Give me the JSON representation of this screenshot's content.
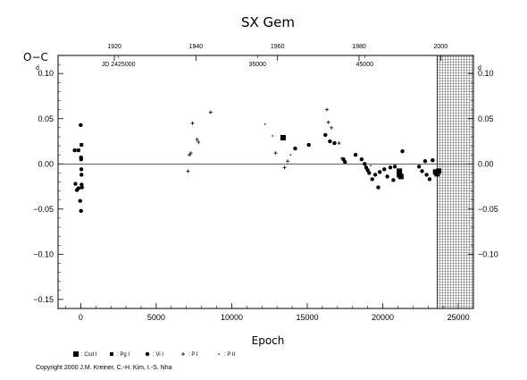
{
  "chart_data": {
    "type": "scatter",
    "title": "SX Gem",
    "xlabel": "Epoch",
    "ylabel": "O−C",
    "y_unit_mark": "d",
    "xlim": [
      -1500,
      26000
    ],
    "ylim": [
      -0.16,
      0.12
    ],
    "x_ticks": [
      {
        "value": 0,
        "label": "0"
      },
      {
        "value": 5000,
        "label": "5000"
      },
      {
        "value": 10000,
        "label": "10000"
      },
      {
        "value": 15000,
        "label": "15000"
      },
      {
        "value": 20000,
        "label": "20000"
      },
      {
        "value": 25000,
        "label": "25000"
      }
    ],
    "y_ticks_left": [
      {
        "value": 0.1,
        "label": "0.10"
      },
      {
        "value": 0.05,
        "label": "0.05"
      },
      {
        "value": 0.0,
        "label": "0.00"
      },
      {
        "value": -0.05,
        "label": "−0.05"
      },
      {
        "value": -0.1,
        "label": "−0.10"
      },
      {
        "value": -0.15,
        "label": "−0.15"
      }
    ],
    "y_ticks_right": [
      {
        "value": 0.1,
        "label": "0.10"
      },
      {
        "value": 0.05,
        "label": "0.05"
      },
      {
        "value": 0.0,
        "label": "0.00"
      },
      {
        "value": -0.05,
        "label": "−0.05"
      },
      {
        "value": -0.1,
        "label": "−0.10"
      }
    ],
    "top_year_ticks": [
      {
        "value": 1920,
        "epoch": 2230,
        "label": "1920"
      },
      {
        "value": 1940,
        "epoch": 7630,
        "label": "1940"
      },
      {
        "value": 1960,
        "epoch": 13030,
        "label": "1960"
      },
      {
        "value": 1980,
        "epoch": 18430,
        "label": "1980"
      },
      {
        "value": 2000,
        "epoch": 23830,
        "label": "2000"
      }
    ],
    "top_jd_labels": [
      {
        "epoch": 2500,
        "label": "JD 2425000"
      },
      {
        "epoch": 11700,
        "label": "35000"
      },
      {
        "epoch": 18800,
        "label": "45000"
      }
    ],
    "grid": false,
    "zero_line": true,
    "hatched_region": {
      "x_start": 23600,
      "x_end": 26000
    },
    "legend_placement": "bottom-left",
    "series": [
      {
        "name": "Ccd I",
        "marker": "square",
        "points": [
          [
            13400,
            0.029
          ],
          [
            21100,
            -0.012
          ],
          [
            21100,
            -0.008
          ],
          [
            23500,
            -0.009
          ],
          [
            23700,
            -0.008
          ],
          [
            23600,
            -0.011
          ],
          [
            21200,
            -0.014
          ]
        ]
      },
      {
        "name": "Pg I",
        "marker": "small-square",
        "points": [
          [
            -150,
            0.015
          ],
          [
            50,
            0.021
          ]
        ]
      },
      {
        "name": "Vi I",
        "marker": "circle",
        "points": [
          [
            -400,
            0.015
          ],
          [
            -350,
            -0.022
          ],
          [
            -250,
            -0.029
          ],
          [
            -150,
            -0.027
          ],
          [
            0,
            0.043
          ],
          [
            20,
            0.007
          ],
          [
            30,
            0.005
          ],
          [
            40,
            -0.006
          ],
          [
            50,
            -0.012
          ],
          [
            60,
            -0.023
          ],
          [
            80,
            -0.026
          ],
          [
            -40,
            -0.041
          ],
          [
            20,
            -0.052
          ],
          [
            14200,
            0.017
          ],
          [
            15100,
            0.021
          ],
          [
            16200,
            0.032
          ],
          [
            16500,
            0.025
          ],
          [
            16800,
            0.023
          ],
          [
            17400,
            0.005
          ],
          [
            17500,
            0.002
          ],
          [
            18200,
            0.01
          ],
          [
            18600,
            0.005
          ],
          [
            18800,
            0.0
          ],
          [
            18900,
            -0.004
          ],
          [
            19000,
            -0.007
          ],
          [
            19100,
            -0.01
          ],
          [
            19300,
            -0.017
          ],
          [
            19500,
            -0.012
          ],
          [
            19700,
            -0.026
          ],
          [
            19800,
            -0.009
          ],
          [
            20100,
            -0.006
          ],
          [
            20300,
            -0.014
          ],
          [
            20500,
            -0.004
          ],
          [
            20700,
            -0.018
          ],
          [
            20800,
            -0.003
          ],
          [
            21300,
            0.014
          ],
          [
            22400,
            -0.003
          ],
          [
            22600,
            -0.008
          ],
          [
            22800,
            0.003
          ],
          [
            22900,
            -0.012
          ],
          [
            23100,
            -0.017
          ],
          [
            23300,
            0.004
          ]
        ]
      },
      {
        "name": "P I",
        "marker": "plus",
        "points": [
          [
            7100,
            -0.008
          ],
          [
            7200,
            0.01
          ],
          [
            7300,
            0.012
          ],
          [
            7400,
            0.045
          ],
          [
            7700,
            0.027
          ],
          [
            7800,
            0.024
          ],
          [
            8600,
            0.057
          ],
          [
            12900,
            0.012
          ],
          [
            13500,
            -0.004
          ],
          [
            13700,
            0.003
          ],
          [
            16300,
            0.06
          ],
          [
            16400,
            0.046
          ],
          [
            16600,
            0.04
          ],
          [
            17100,
            0.023
          ],
          [
            17300,
            0.006
          ]
        ]
      },
      {
        "name": "P II",
        "marker": "dot",
        "points": [
          [
            12200,
            0.044
          ],
          [
            12700,
            0.031
          ],
          [
            13900,
            0.01
          ],
          [
            19200,
            -0.002
          ]
        ]
      }
    ],
    "copyright": "Copyright 2000 J.M. Kreiner, C.-H. Kim, I.-S. Nha"
  }
}
